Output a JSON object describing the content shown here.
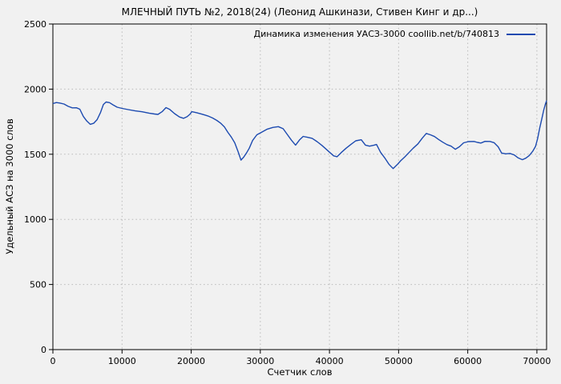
{
  "figure": {
    "title": "МЛЕЧНЫЙ ПУТЬ №2, 2018(24)  (Леонид Ашкинази, Стивен Кинг и др...)",
    "background": "#f1f1f1"
  },
  "chart_data": {
    "type": "line",
    "title": "МЛЕЧНЫЙ ПУТЬ №2, 2018(24)  (Леонид Ашкинази, Стивен Кинг и др...)",
    "xlabel": "Счетчик слов",
    "ylabel": "Удельный АСЗ на 3000 слов",
    "xlim": [
      0,
      71400
    ],
    "ylim": [
      0,
      2500
    ],
    "xticks": [
      0,
      10000,
      20000,
      30000,
      40000,
      50000,
      60000,
      70000
    ],
    "yticks": [
      0,
      500,
      1000,
      1500,
      2000,
      2500
    ],
    "grid": "dotted",
    "legend_position": "top-right-inside",
    "colors": {
      "line": "#1c4ab0",
      "grid": "#b9b9b9",
      "border": "#000000",
      "text": "#000000",
      "background": "#f1f1f1"
    },
    "series": [
      {
        "name": "Динамика изменения УАСЗ-3000 coollib.net/b/740813",
        "color": "#1c4ab0",
        "points": [
          [
            0,
            1889
          ],
          [
            500,
            1897
          ],
          [
            1000,
            1893
          ],
          [
            1600,
            1886
          ],
          [
            2200,
            1868
          ],
          [
            2800,
            1856
          ],
          [
            3400,
            1857
          ],
          [
            3900,
            1846
          ],
          [
            4400,
            1790
          ],
          [
            4900,
            1755
          ],
          [
            5400,
            1730
          ],
          [
            5900,
            1738
          ],
          [
            6400,
            1766
          ],
          [
            6900,
            1822
          ],
          [
            7300,
            1882
          ],
          [
            7700,
            1901
          ],
          [
            8200,
            1896
          ],
          [
            8700,
            1879
          ],
          [
            9300,
            1861
          ],
          [
            10000,
            1852
          ],
          [
            10900,
            1843
          ],
          [
            11900,
            1833
          ],
          [
            12900,
            1826
          ],
          [
            13900,
            1816
          ],
          [
            14700,
            1809
          ],
          [
            15200,
            1806
          ],
          [
            15800,
            1827
          ],
          [
            16350,
            1858
          ],
          [
            16900,
            1844
          ],
          [
            17600,
            1812
          ],
          [
            18300,
            1786
          ],
          [
            18900,
            1776
          ],
          [
            19400,
            1788
          ],
          [
            19800,
            1806
          ],
          [
            20100,
            1827
          ],
          [
            20800,
            1819
          ],
          [
            21600,
            1807
          ],
          [
            22400,
            1794
          ],
          [
            23100,
            1778
          ],
          [
            23700,
            1760
          ],
          [
            24300,
            1737
          ],
          [
            24800,
            1710
          ],
          [
            25300,
            1668
          ],
          [
            25800,
            1632
          ],
          [
            26300,
            1588
          ],
          [
            26800,
            1518
          ],
          [
            27200,
            1455
          ],
          [
            27600,
            1478
          ],
          [
            28000,
            1510
          ],
          [
            28400,
            1546
          ],
          [
            28900,
            1607
          ],
          [
            29500,
            1649
          ],
          [
            30200,
            1669
          ],
          [
            31000,
            1693
          ],
          [
            31800,
            1706
          ],
          [
            32600,
            1712
          ],
          [
            33300,
            1696
          ],
          [
            33900,
            1652
          ],
          [
            34500,
            1608
          ],
          [
            35100,
            1570
          ],
          [
            35700,
            1612
          ],
          [
            36200,
            1637
          ],
          [
            36800,
            1630
          ],
          [
            37500,
            1622
          ],
          [
            38200,
            1597
          ],
          [
            38900,
            1568
          ],
          [
            39500,
            1540
          ],
          [
            40000,
            1516
          ],
          [
            40600,
            1488
          ],
          [
            41100,
            1481
          ],
          [
            41700,
            1513
          ],
          [
            42400,
            1546
          ],
          [
            43100,
            1575
          ],
          [
            43800,
            1603
          ],
          [
            44600,
            1611
          ],
          [
            45200,
            1570
          ],
          [
            45800,
            1562
          ],
          [
            46400,
            1569
          ],
          [
            46800,
            1575
          ],
          [
            47400,
            1515
          ],
          [
            48000,
            1472
          ],
          [
            48600,
            1423
          ],
          [
            49200,
            1390
          ],
          [
            49800,
            1420
          ],
          [
            50300,
            1450
          ],
          [
            50900,
            1480
          ],
          [
            51500,
            1513
          ],
          [
            52100,
            1546
          ],
          [
            52800,
            1580
          ],
          [
            53400,
            1622
          ],
          [
            54000,
            1660
          ],
          [
            54600,
            1649
          ],
          [
            55200,
            1636
          ],
          [
            55800,
            1613
          ],
          [
            56400,
            1592
          ],
          [
            57000,
            1574
          ],
          [
            57600,
            1562
          ],
          [
            58200,
            1538
          ],
          [
            58800,
            1558
          ],
          [
            59400,
            1588
          ],
          [
            60100,
            1597
          ],
          [
            60900,
            1598
          ],
          [
            61400,
            1591
          ],
          [
            61900,
            1586
          ],
          [
            62500,
            1599
          ],
          [
            63200,
            1598
          ],
          [
            63800,
            1589
          ],
          [
            64400,
            1557
          ],
          [
            64900,
            1509
          ],
          [
            65500,
            1503
          ],
          [
            66100,
            1506
          ],
          [
            66700,
            1495
          ],
          [
            67300,
            1472
          ],
          [
            67900,
            1458
          ],
          [
            68400,
            1470
          ],
          [
            68900,
            1490
          ],
          [
            69400,
            1523
          ],
          [
            69800,
            1560
          ],
          [
            70100,
            1620
          ],
          [
            70400,
            1700
          ],
          [
            70700,
            1770
          ],
          [
            71000,
            1840
          ],
          [
            71200,
            1880
          ],
          [
            71400,
            1912
          ]
        ]
      }
    ]
  }
}
